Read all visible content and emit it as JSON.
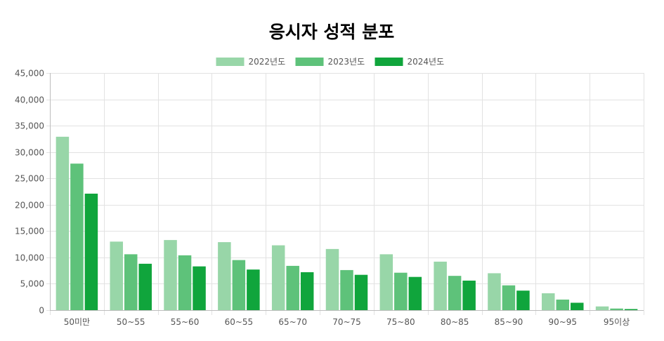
{
  "chart_data": {
    "type": "bar",
    "title": "응시자 성적 분포",
    "xlabel": "",
    "ylabel": "",
    "categories": [
      "50미만",
      "50~55",
      "55~60",
      "60~55",
      "65~70",
      "70~75",
      "75~80",
      "80~85",
      "85~90",
      "90~95",
      "95이상"
    ],
    "series": [
      {
        "name": "2022년도",
        "color": "#98d6a8",
        "values": [
          32900,
          13000,
          13300,
          12900,
          12300,
          11600,
          10600,
          9200,
          7000,
          3200,
          700
        ]
      },
      {
        "name": "2023년도",
        "color": "#5ec27a",
        "values": [
          27800,
          10600,
          10400,
          9500,
          8400,
          7600,
          7100,
          6500,
          4700,
          2000,
          300
        ]
      },
      {
        "name": "2024년도",
        "color": "#10a53c",
        "values": [
          22100,
          8800,
          8300,
          7700,
          7200,
          6700,
          6300,
          5600,
          3700,
          1400,
          200
        ]
      }
    ],
    "ylim": [
      0,
      45000
    ],
    "yticks": [
      0,
      5000,
      10000,
      15000,
      20000,
      25000,
      30000,
      35000,
      40000,
      45000
    ],
    "ytick_labels": [
      "0",
      "5,000",
      "10,000",
      "15,000",
      "20,000",
      "25,000",
      "30,000",
      "35,000",
      "40,000",
      "45,000"
    ],
    "grid": true,
    "legend_position": "top-center"
  }
}
